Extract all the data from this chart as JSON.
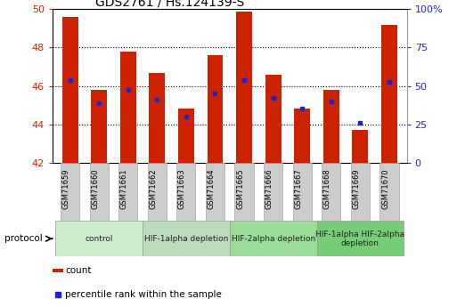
{
  "title": "GDS2761 / Hs.124139-S",
  "samples": [
    "GSM71659",
    "GSM71660",
    "GSM71661",
    "GSM71662",
    "GSM71663",
    "GSM71664",
    "GSM71665",
    "GSM71666",
    "GSM71667",
    "GSM71668",
    "GSM71669",
    "GSM71670"
  ],
  "bar_bottoms": [
    42,
    42,
    42,
    42,
    42,
    42,
    42,
    42,
    42,
    42,
    42,
    42
  ],
  "bar_tops": [
    49.6,
    45.8,
    47.8,
    46.7,
    44.8,
    47.6,
    49.9,
    46.6,
    44.8,
    45.8,
    43.7,
    49.2
  ],
  "blue_vals": [
    46.3,
    45.1,
    45.8,
    45.3,
    44.4,
    45.6,
    46.3,
    45.4,
    44.8,
    45.2,
    44.1,
    46.2
  ],
  "ylim_left": [
    42,
    50
  ],
  "ylim_right": [
    0,
    100
  ],
  "yticks_left": [
    42,
    44,
    46,
    48,
    50
  ],
  "yticks_right": [
    0,
    25,
    50,
    75,
    100
  ],
  "bar_color": "#cc2200",
  "blue_color": "#2222cc",
  "title_color": "#000000",
  "left_axis_color": "#cc2200",
  "right_axis_color": "#2222cc",
  "grid_color": "#000000",
  "tick_box_color": "#cccccc",
  "protocols": [
    {
      "label": "control",
      "start": 0,
      "end": 3,
      "color": "#cceecc"
    },
    {
      "label": "HIF-1alpha depletion",
      "start": 3,
      "end": 6,
      "color": "#bbddbb"
    },
    {
      "label": "HIF-2alpha depletion",
      "start": 6,
      "end": 9,
      "color": "#99dd99"
    },
    {
      "label": "HIF-1alpha HIF-2alpha\ndepletion",
      "start": 9,
      "end": 12,
      "color": "#77cc77"
    }
  ],
  "legend_labels": [
    "count",
    "percentile rank within the sample"
  ],
  "legend_colors": [
    "#cc2200",
    "#2222cc"
  ],
  "protocol_label": "protocol",
  "bar_width": 0.55
}
